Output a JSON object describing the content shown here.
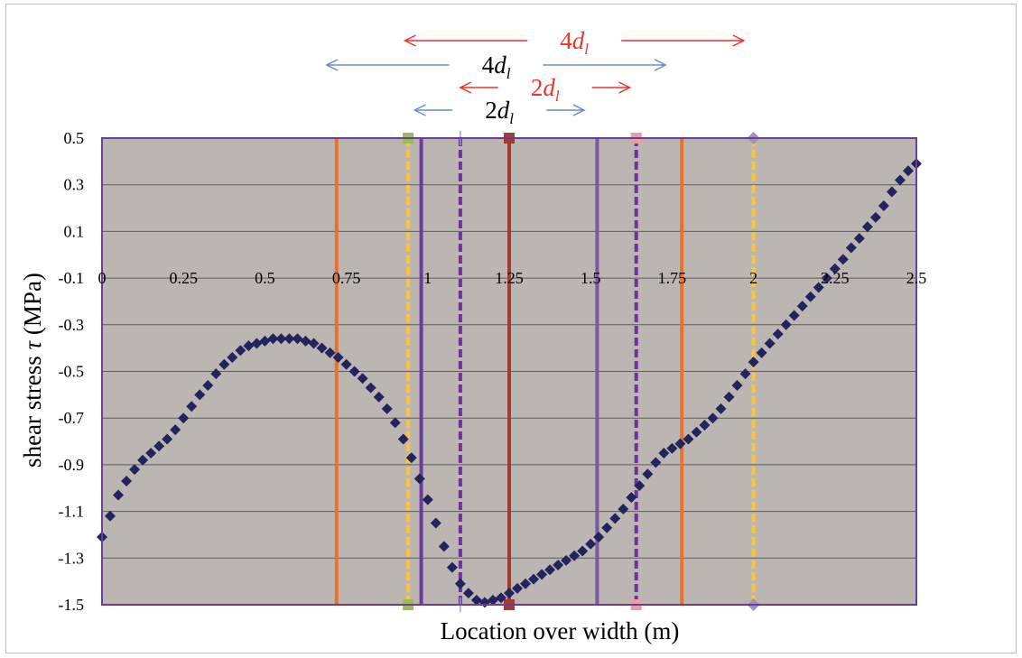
{
  "chart_data": {
    "type": "scatter",
    "xlabel": "Location over width (m)",
    "ylabel": "shear stress τ (MPa)",
    "ylabel_plain": "shear stress ",
    "ylabel_symbol": "τ",
    "ylabel_unit": " (MPa)",
    "xlim": [
      0,
      2.5
    ],
    "ylim": [
      -1.5,
      0.5
    ],
    "x_ticks": [
      "0",
      "0.25",
      "0.5",
      "0.75",
      "1",
      "1.25",
      "1.5",
      "1.75",
      "2",
      "2.25",
      "2.5"
    ],
    "x_tick_values": [
      0,
      0.25,
      0.5,
      0.75,
      1,
      1.25,
      1.5,
      1.75,
      2,
      2.25,
      2.5
    ],
    "x_tick_row_y": -0.1,
    "y_ticks": [
      "0.5",
      "0.3",
      "0.1",
      "-0.1",
      "-0.3",
      "-0.5",
      "-0.7",
      "-0.9",
      "-1.1",
      "-1.3",
      "-1.5"
    ],
    "y_tick_values": [
      0.5,
      0.3,
      0.1,
      -0.1,
      -0.3,
      -0.5,
      -0.7,
      -0.9,
      -1.1,
      -1.3,
      -1.5
    ],
    "grid": true,
    "series": [
      {
        "color": "#23235e",
        "marker": "diamond",
        "points": [
          [
            0.0,
            -1.21
          ],
          [
            0.025,
            -1.12
          ],
          [
            0.05,
            -1.03
          ],
          [
            0.075,
            -0.97
          ],
          [
            0.1,
            -0.92
          ],
          [
            0.125,
            -0.88
          ],
          [
            0.15,
            -0.85
          ],
          [
            0.175,
            -0.82
          ],
          [
            0.2,
            -0.79
          ],
          [
            0.225,
            -0.75
          ],
          [
            0.25,
            -0.7
          ],
          [
            0.275,
            -0.65
          ],
          [
            0.3,
            -0.6
          ],
          [
            0.325,
            -0.56
          ],
          [
            0.35,
            -0.51
          ],
          [
            0.375,
            -0.47
          ],
          [
            0.4,
            -0.44
          ],
          [
            0.425,
            -0.41
          ],
          [
            0.45,
            -0.39
          ],
          [
            0.475,
            -0.38
          ],
          [
            0.5,
            -0.37
          ],
          [
            0.525,
            -0.36
          ],
          [
            0.55,
            -0.36
          ],
          [
            0.575,
            -0.36
          ],
          [
            0.6,
            -0.36
          ],
          [
            0.625,
            -0.37
          ],
          [
            0.65,
            -0.38
          ],
          [
            0.675,
            -0.4
          ],
          [
            0.7,
            -0.42
          ],
          [
            0.725,
            -0.44
          ],
          [
            0.75,
            -0.47
          ],
          [
            0.775,
            -0.5
          ],
          [
            0.8,
            -0.53
          ],
          [
            0.825,
            -0.57
          ],
          [
            0.85,
            -0.61
          ],
          [
            0.875,
            -0.66
          ],
          [
            0.9,
            -0.72
          ],
          [
            0.925,
            -0.79
          ],
          [
            0.95,
            -0.87
          ],
          [
            0.975,
            -0.96
          ],
          [
            1.0,
            -1.05
          ],
          [
            1.025,
            -1.15
          ],
          [
            1.05,
            -1.25
          ],
          [
            1.075,
            -1.34
          ],
          [
            1.1,
            -1.41
          ],
          [
            1.125,
            -1.45
          ],
          [
            1.15,
            -1.48
          ],
          [
            1.175,
            -1.49
          ],
          [
            1.2,
            -1.48
          ],
          [
            1.225,
            -1.47
          ],
          [
            1.25,
            -1.45
          ],
          [
            1.275,
            -1.43
          ],
          [
            1.3,
            -1.41
          ],
          [
            1.325,
            -1.39
          ],
          [
            1.35,
            -1.37
          ],
          [
            1.375,
            -1.35
          ],
          [
            1.4,
            -1.33
          ],
          [
            1.425,
            -1.31
          ],
          [
            1.45,
            -1.29
          ],
          [
            1.475,
            -1.27
          ],
          [
            1.5,
            -1.24
          ],
          [
            1.525,
            -1.21
          ],
          [
            1.55,
            -1.17
          ],
          [
            1.575,
            -1.13
          ],
          [
            1.6,
            -1.09
          ],
          [
            1.625,
            -1.04
          ],
          [
            1.65,
            -0.99
          ],
          [
            1.675,
            -0.94
          ],
          [
            1.7,
            -0.89
          ],
          [
            1.725,
            -0.85
          ],
          [
            1.75,
            -0.83
          ],
          [
            1.775,
            -0.81
          ],
          [
            1.8,
            -0.79
          ],
          [
            1.825,
            -0.76
          ],
          [
            1.85,
            -0.73
          ],
          [
            1.875,
            -0.7
          ],
          [
            1.9,
            -0.66
          ],
          [
            1.925,
            -0.61
          ],
          [
            1.95,
            -0.56
          ],
          [
            1.975,
            -0.51
          ],
          [
            2.0,
            -0.46
          ],
          [
            2.025,
            -0.42
          ],
          [
            2.05,
            -0.38
          ],
          [
            2.075,
            -0.34
          ],
          [
            2.1,
            -0.3
          ],
          [
            2.125,
            -0.26
          ],
          [
            2.15,
            -0.22
          ],
          [
            2.175,
            -0.18
          ],
          [
            2.2,
            -0.14
          ],
          [
            2.225,
            -0.1
          ],
          [
            2.25,
            -0.06
          ],
          [
            2.275,
            -0.02
          ],
          [
            2.3,
            0.03
          ],
          [
            2.325,
            0.07
          ],
          [
            2.35,
            0.12
          ],
          [
            2.375,
            0.16
          ],
          [
            2.4,
            0.21
          ],
          [
            2.425,
            0.27
          ],
          [
            2.45,
            0.32
          ],
          [
            2.475,
            0.36
          ],
          [
            2.5,
            0.39
          ]
        ]
      }
    ],
    "vertical_lines": [
      {
        "x": 0.72,
        "color": "#e8722c",
        "dash": "solid"
      },
      {
        "x": 0.94,
        "color": "#ffc42e",
        "dash": "dashed",
        "marker": "square",
        "marker_color": "#9bbb59"
      },
      {
        "x": 0.98,
        "color": "#6a3d9a",
        "dash": "solid"
      },
      {
        "x": 1.1,
        "color": "#7030a0",
        "dash": "dashed",
        "marker": "cross",
        "marker_color": "#8aa8d0"
      },
      {
        "x": 1.25,
        "color": "#a33b2f",
        "dash": "solid",
        "marker": "square",
        "marker_color": "#a33b2f"
      },
      {
        "x": 1.52,
        "color": "#7a5a9e",
        "dash": "solid"
      },
      {
        "x": 1.64,
        "color": "#7030a0",
        "dash": "dashed",
        "marker": "square",
        "marker_color": "#e8a0a0"
      },
      {
        "x": 1.78,
        "color": "#e8722c",
        "dash": "solid"
      },
      {
        "x": 2.0,
        "color": "#ffc42e",
        "dash": "dashed",
        "marker": "diamond",
        "marker_color": "#a08ec0"
      }
    ],
    "annotations": [
      {
        "label_main": "4",
        "label_var": "d",
        "label_sub": "l",
        "color": "#e8342a",
        "arrow_color": "#e8342a",
        "from": 0.93,
        "to": 1.97
      },
      {
        "label_main": "4",
        "label_var": "d",
        "label_sub": "l",
        "color": "#000000",
        "arrow_color": "#6a8ccc",
        "from": 0.69,
        "to": 1.73
      },
      {
        "label_main": "2",
        "label_var": "d",
        "label_sub": "l",
        "color": "#e8342a",
        "arrow_color": "#e8342a",
        "from": 1.1,
        "to": 1.62
      },
      {
        "label_main": "2",
        "label_var": "d",
        "label_sub": "l",
        "color": "#000000",
        "arrow_color": "#6a8ccc",
        "from": 0.96,
        "to": 1.48
      }
    ],
    "plot_background": "#bcb6b2",
    "plot_border": "#6a3d9a",
    "gridline_color": "#5e5e5e"
  }
}
